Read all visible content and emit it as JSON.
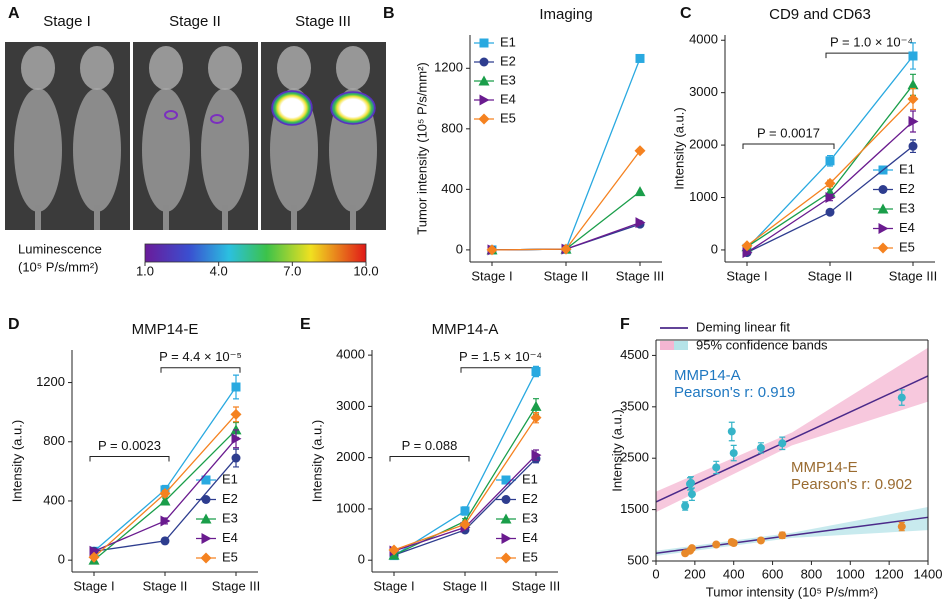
{
  "panel_a": {
    "label": "A",
    "stages": [
      "Stage I",
      "Stage II",
      "Stage III"
    ],
    "colorbar": {
      "title": "Luminescence",
      "unit": "(10⁵ P/s/mm²)",
      "lim": [
        1,
        10
      ],
      "ticks": [
        {
          "value": 1,
          "label": "1.0"
        },
        {
          "value": 4,
          "label": "4.0"
        },
        {
          "value": 7,
          "label": "7.0"
        },
        {
          "value": 10,
          "label": "10.0"
        }
      ]
    }
  },
  "chart_data": [
    {
      "type": "line",
      "label": "B",
      "title": "Imaging",
      "ylabel": "Tumor intensity (10⁵ P/s/mm²)",
      "categories": [
        "Stage I",
        "Stage II",
        "Stage III"
      ],
      "ylim": [
        -80,
        1420
      ],
      "yticks": [
        0,
        400,
        800,
        1200
      ],
      "legend": "upper left",
      "series": [
        {
          "name": "E1",
          "color": "#29a9e0",
          "marker": "square",
          "values": [
            0,
            5,
            1265
          ]
        },
        {
          "name": "E2",
          "color": "#2e3d8f",
          "marker": "circle",
          "values": [
            0,
            5,
            170
          ]
        },
        {
          "name": "E3",
          "color": "#1a9e4a",
          "marker": "triangle-up",
          "values": [
            0,
            5,
            385
          ]
        },
        {
          "name": "E4",
          "color": "#6a1b8f",
          "marker": "triangle-right",
          "values": [
            0,
            5,
            180
          ]
        },
        {
          "name": "E5",
          "color": "#f58220",
          "marker": "diamond",
          "values": [
            0,
            5,
            655
          ]
        }
      ]
    },
    {
      "type": "line",
      "label": "C",
      "title": "CD9 and CD63",
      "ylabel": "Intensity (a.u.)",
      "categories": [
        "Stage I",
        "Stage II",
        "Stage III"
      ],
      "ylim": [
        -230,
        4100
      ],
      "yticks": [
        0,
        1000,
        2000,
        3000,
        4000
      ],
      "legend": "lower right",
      "annotations": [
        "P = 0.0017",
        "P = 1.0 × 10⁻⁴"
      ],
      "series": [
        {
          "name": "E1",
          "color": "#29a9e0",
          "marker": "square",
          "values": [
            30,
            1700,
            3700
          ],
          "errors": [
            50,
            100,
            250
          ]
        },
        {
          "name": "E2",
          "color": "#2e3d8f",
          "marker": "circle",
          "values": [
            -50,
            720,
            1980
          ],
          "errors": [
            20,
            40,
            120
          ]
        },
        {
          "name": "E3",
          "color": "#1a9e4a",
          "marker": "triangle-up",
          "values": [
            60,
            1100,
            3150
          ],
          "errors": [
            30,
            60,
            200
          ]
        },
        {
          "name": "E4",
          "color": "#6a1b8f",
          "marker": "triangle-right",
          "values": [
            -50,
            1000,
            2450
          ],
          "errors": [
            30,
            60,
            200
          ]
        },
        {
          "name": "E5",
          "color": "#f58220",
          "marker": "diamond",
          "values": [
            80,
            1270,
            2880
          ],
          "errors": [
            30,
            60,
            200
          ]
        }
      ]
    },
    {
      "type": "line",
      "label": "D",
      "title": "MMP14-E",
      "ylabel": "Intensity (a.u.)",
      "categories": [
        "Stage I",
        "Stage II",
        "Stage III"
      ],
      "ylim": [
        -80,
        1420
      ],
      "yticks": [
        0,
        400,
        800,
        1200
      ],
      "legend": "lower right",
      "annotations": [
        "P = 0.0023",
        "P = 4.4 × 10⁻⁵"
      ],
      "series": [
        {
          "name": "E1",
          "color": "#29a9e0",
          "marker": "square",
          "values": [
            60,
            475,
            1170
          ],
          "errors": [
            15,
            30,
            80
          ]
        },
        {
          "name": "E2",
          "color": "#2e3d8f",
          "marker": "circle",
          "values": [
            60,
            130,
            690
          ],
          "errors": [
            10,
            20,
            60
          ]
        },
        {
          "name": "E3",
          "color": "#1a9e4a",
          "marker": "triangle-up",
          "values": [
            0,
            400,
            880
          ],
          "errors": [
            15,
            20,
            50
          ]
        },
        {
          "name": "E4",
          "color": "#6a1b8f",
          "marker": "triangle-right",
          "values": [
            60,
            265,
            820
          ],
          "errors": [
            15,
            20,
            60
          ]
        },
        {
          "name": "E5",
          "color": "#f58220",
          "marker": "diamond",
          "values": [
            20,
            450,
            985
          ],
          "errors": [
            15,
            20,
            50
          ]
        }
      ]
    },
    {
      "type": "line",
      "label": "E",
      "title": "MMP14-A",
      "ylabel": "Intensity (a.u.)",
      "categories": [
        "Stage I",
        "Stage II",
        "Stage III"
      ],
      "ylim": [
        -230,
        4100
      ],
      "yticks": [
        0,
        1000,
        2000,
        3000,
        4000
      ],
      "legend": "lower right",
      "annotations": [
        "P = 0.088",
        "P = 1.5 × 10⁻⁴"
      ],
      "series": [
        {
          "name": "E1",
          "color": "#29a9e0",
          "marker": "square",
          "values": [
            90,
            960,
            3680
          ],
          "errors": [
            30,
            80,
            100
          ]
        },
        {
          "name": "E2",
          "color": "#2e3d8f",
          "marker": "circle",
          "values": [
            100,
            590,
            1980
          ],
          "errors": [
            20,
            40,
            80
          ]
        },
        {
          "name": "E3",
          "color": "#1a9e4a",
          "marker": "triangle-up",
          "values": [
            100,
            760,
            3000
          ],
          "errors": [
            20,
            50,
            150
          ]
        },
        {
          "name": "E4",
          "color": "#6a1b8f",
          "marker": "triangle-right",
          "values": [
            180,
            640,
            2050
          ],
          "errors": [
            20,
            40,
            100
          ]
        },
        {
          "name": "E5",
          "color": "#f58220",
          "marker": "diamond",
          "values": [
            200,
            700,
            2780
          ],
          "errors": [
            20,
            50,
            100
          ]
        }
      ]
    },
    {
      "type": "scatter",
      "label": "F",
      "xlabel": "Tumor intensity (10⁵ P/s/mm²)",
      "ylabel": "Intensity (a.u.)",
      "xlim": [
        0,
        1400
      ],
      "xticks": [
        0,
        200,
        400,
        600,
        800,
        1000,
        1200,
        1400
      ],
      "ylim": [
        500,
        4800
      ],
      "yticks": [
        500,
        1500,
        2500,
        3500,
        4500
      ],
      "fit_label": "Deming linear fit",
      "fit_color": "#4b2a8a",
      "band_label": "95% confidence bands",
      "series": [
        {
          "name": "MMP14-A",
          "pearson": "Pearson's r:  0.919",
          "color": "#36b4c8",
          "text_color": "#1f78c1",
          "band_color": "#f4b6d2",
          "x": [
            150,
            175,
            185,
            180,
            310,
            390,
            400,
            540,
            650,
            1265
          ],
          "values": [
            1570,
            2000,
            1800,
            2020,
            2320,
            3020,
            2600,
            2700,
            2790,
            3680
          ],
          "errors": [
            80,
            120,
            120,
            120,
            120,
            180,
            150,
            100,
            120,
            150
          ],
          "fit": {
            "x": [
              0,
              700,
              1400
            ],
            "values": [
              1650,
              2875,
              4100
            ],
            "band_lower": [
              1450,
              2750,
              3600
            ],
            "band_upper": [
              1850,
              3000,
              4650
            ]
          }
        },
        {
          "name": "MMP14-E",
          "pearson": "Pearson's r:  0.902",
          "color": "#e8892a",
          "text_color": "#9a6b30",
          "band_color": "#b5e3e8",
          "x": [
            150,
            175,
            185,
            310,
            390,
            400,
            540,
            650,
            1265
          ],
          "values": [
            650,
            700,
            750,
            820,
            870,
            850,
            900,
            1000,
            1170
          ],
          "errors": [
            40,
            40,
            40,
            40,
            50,
            50,
            40,
            60,
            80
          ],
          "fit": {
            "x": [
              0,
              700,
              1400
            ],
            "values": [
              650,
              1000,
              1350
            ],
            "band_lower": [
              600,
              950,
              1100
            ],
            "band_upper": [
              700,
              1050,
              1550
            ]
          }
        }
      ]
    }
  ]
}
